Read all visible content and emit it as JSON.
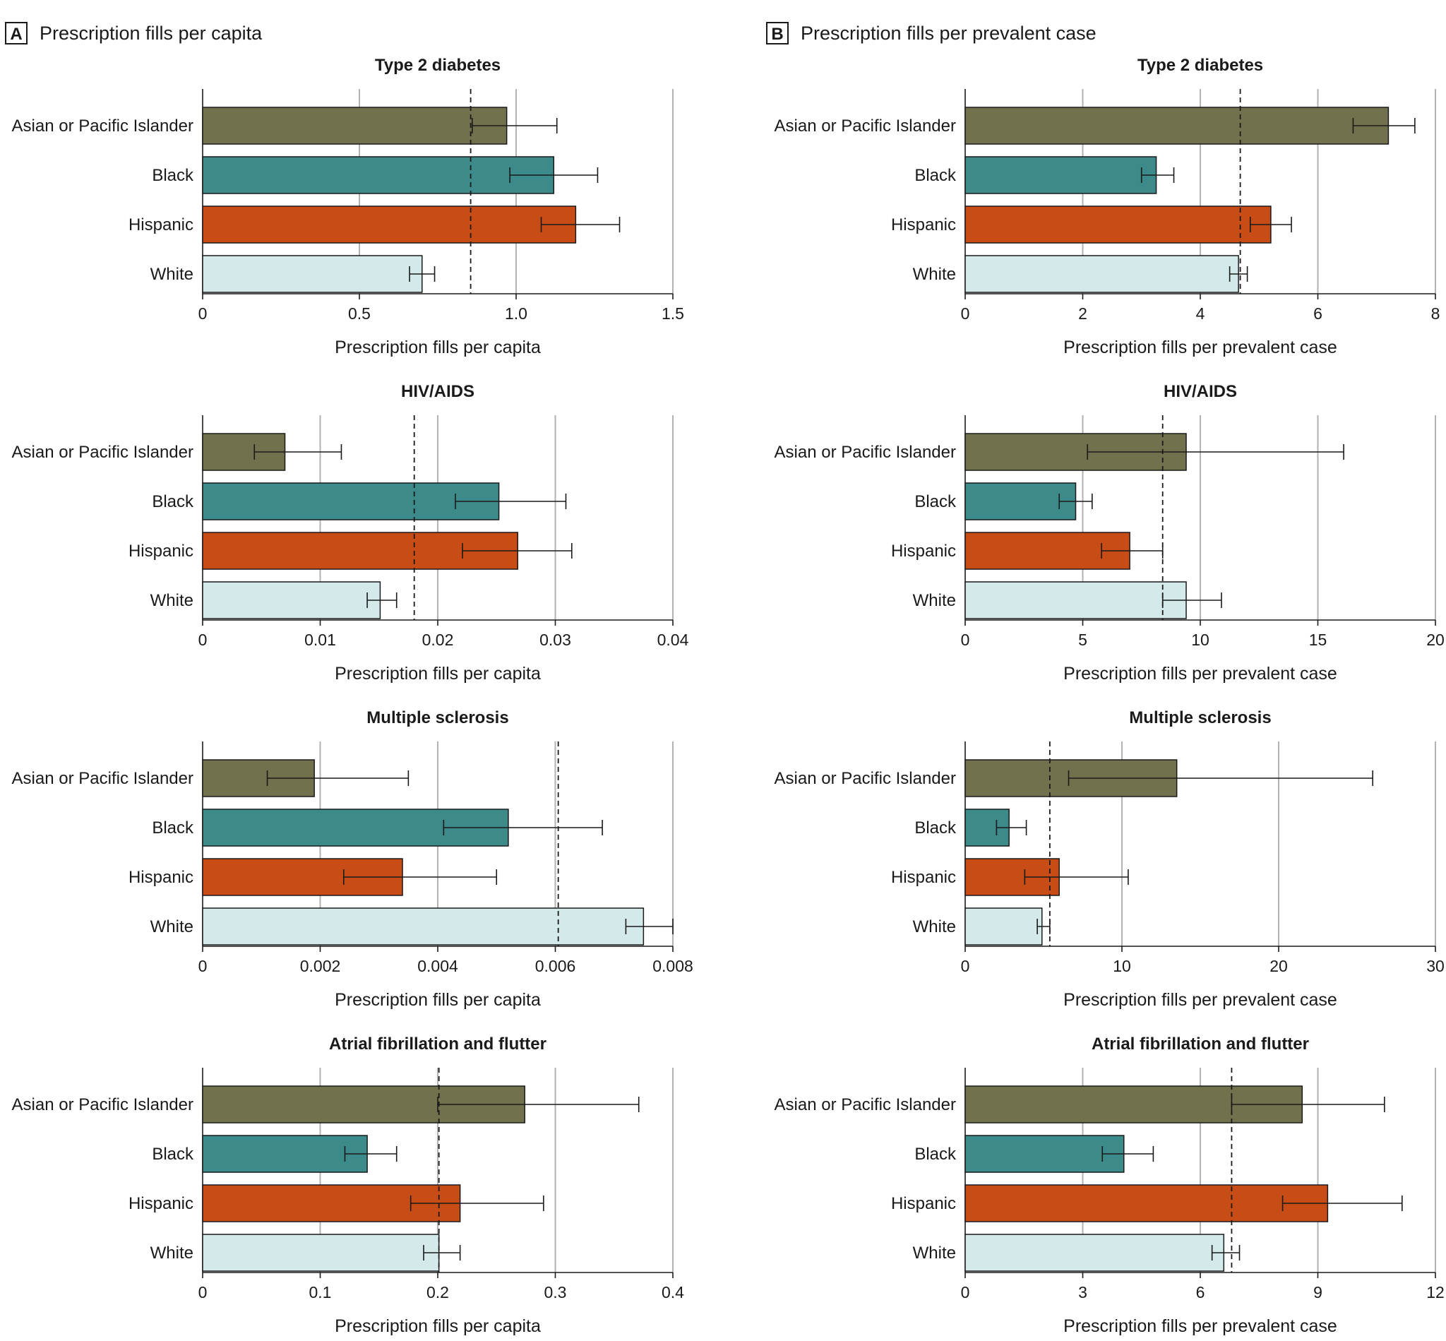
{
  "panels": [
    {
      "letter": "A",
      "title": "Prescription fills per capita"
    },
    {
      "letter": "B",
      "title": "Prescription fills per prevalent case"
    }
  ],
  "colors": {
    "Asian or Pacific Islander": "#72714d",
    "Black": "#3c8a8a",
    "Hispanic": "#c84c16",
    "White": "#d4e9ea"
  },
  "chart_data": [
    {
      "type": "bar",
      "panel": "A",
      "title": "Type 2 diabetes",
      "categories": [
        "Asian or Pacific Islander",
        "Black",
        "Hispanic",
        "White"
      ],
      "values": [
        0.97,
        1.12,
        1.19,
        0.7
      ],
      "ci_low": [
        0.86,
        0.98,
        1.08,
        0.66
      ],
      "ci_high": [
        1.13,
        1.26,
        1.33,
        0.74
      ],
      "reference": 0.855,
      "xlim": [
        0,
        1.5
      ],
      "xticks": [
        "0",
        "0.5",
        "1.0",
        "1.5"
      ],
      "xlabel": "Prescription fills per capita",
      "grid": true
    },
    {
      "type": "bar",
      "panel": "B",
      "title": "Type 2 diabetes",
      "categories": [
        "Asian or Pacific Islander",
        "Black",
        "Hispanic",
        "White"
      ],
      "values": [
        7.2,
        3.25,
        5.2,
        4.65
      ],
      "ci_low": [
        6.6,
        3.0,
        4.85,
        4.5
      ],
      "ci_high": [
        7.65,
        3.55,
        5.55,
        4.8
      ],
      "reference": 4.68,
      "xlim": [
        0,
        8
      ],
      "xticks": [
        "0",
        "2",
        "4",
        "6",
        "8"
      ],
      "xlabel": "Prescription fills per prevalent case",
      "grid": true
    },
    {
      "type": "bar",
      "panel": "A",
      "title": "HIV/AIDS",
      "categories": [
        "Asian or Pacific Islander",
        "Black",
        "Hispanic",
        "White"
      ],
      "values": [
        0.007,
        0.0252,
        0.0268,
        0.0151
      ],
      "ci_low": [
        0.0044,
        0.0215,
        0.0221,
        0.014
      ],
      "ci_high": [
        0.0118,
        0.0309,
        0.0314,
        0.0165
      ],
      "reference": 0.018,
      "xlim": [
        0,
        0.04
      ],
      "xticks": [
        "0",
        "0.01",
        "0.02",
        "0.03",
        "0.04"
      ],
      "xlabel": "Prescription fills per capita",
      "grid": true
    },
    {
      "type": "bar",
      "panel": "B",
      "title": "HIV/AIDS",
      "categories": [
        "Asian or Pacific Islander",
        "Black",
        "Hispanic",
        "White"
      ],
      "values": [
        9.4,
        4.7,
        7.0,
        9.4
      ],
      "ci_low": [
        5.2,
        4.0,
        5.8,
        8.4
      ],
      "ci_high": [
        16.1,
        5.4,
        8.4,
        10.9
      ],
      "reference": 8.4,
      "xlim": [
        0,
        20
      ],
      "xticks": [
        "0",
        "5",
        "10",
        "15",
        "20"
      ],
      "xlabel": "Prescription fills per prevalent case",
      "grid": true
    },
    {
      "type": "bar",
      "panel": "A",
      "title": "Multiple sclerosis",
      "categories": [
        "Asian or Pacific Islander",
        "Black",
        "Hispanic",
        "White"
      ],
      "values": [
        0.0019,
        0.0052,
        0.0034,
        0.0075
      ],
      "ci_low": [
        0.0011,
        0.0041,
        0.0024,
        0.0072
      ],
      "ci_high": [
        0.0035,
        0.0068,
        0.005,
        0.008
      ],
      "reference": 0.00605,
      "xlim": [
        0,
        0.008
      ],
      "xticks": [
        "0",
        "0.002",
        "0.004",
        "0.006",
        "0.008"
      ],
      "xlabel": "Prescription fills per capita",
      "grid": true
    },
    {
      "type": "bar",
      "panel": "B",
      "title": "Multiple sclerosis",
      "categories": [
        "Asian or Pacific Islander",
        "Black",
        "Hispanic",
        "White"
      ],
      "values": [
        13.5,
        2.8,
        6.0,
        4.9
      ],
      "ci_low": [
        6.6,
        2.0,
        3.8,
        4.6
      ],
      "ci_high": [
        26.0,
        3.9,
        10.4,
        5.4
      ],
      "reference": 5.4,
      "xlim": [
        0,
        30
      ],
      "xticks": [
        "0",
        "10",
        "20",
        "30"
      ],
      "xlabel": "Prescription fills per prevalent case",
      "grid": true
    },
    {
      "type": "bar",
      "panel": "A",
      "title": "Atrial fibrillation and flutter",
      "categories": [
        "Asian or Pacific Islander",
        "Black",
        "Hispanic",
        "White"
      ],
      "values": [
        0.274,
        0.14,
        0.219,
        0.201
      ],
      "ci_low": [
        0.2,
        0.121,
        0.177,
        0.188
      ],
      "ci_high": [
        0.371,
        0.165,
        0.29,
        0.219
      ],
      "reference": 0.201,
      "xlim": [
        0,
        0.4
      ],
      "xticks": [
        "0",
        "0.1",
        "0.2",
        "0.3",
        "0.4"
      ],
      "xlabel": "Prescription fills per capita",
      "grid": true
    },
    {
      "type": "bar",
      "panel": "B",
      "title": "Atrial fibrillation and flutter",
      "categories": [
        "Asian or Pacific Islander",
        "Black",
        "Hispanic",
        "White"
      ],
      "values": [
        8.6,
        4.05,
        9.25,
        6.6
      ],
      "ci_low": [
        6.8,
        3.5,
        8.1,
        6.3
      ],
      "ci_high": [
        10.7,
        4.8,
        11.15,
        7.0
      ],
      "reference": 6.8,
      "xlim": [
        0,
        12
      ],
      "xticks": [
        "0",
        "3",
        "6",
        "9",
        "12"
      ],
      "xlabel": "Prescription fills per prevalent case",
      "grid": true
    }
  ]
}
